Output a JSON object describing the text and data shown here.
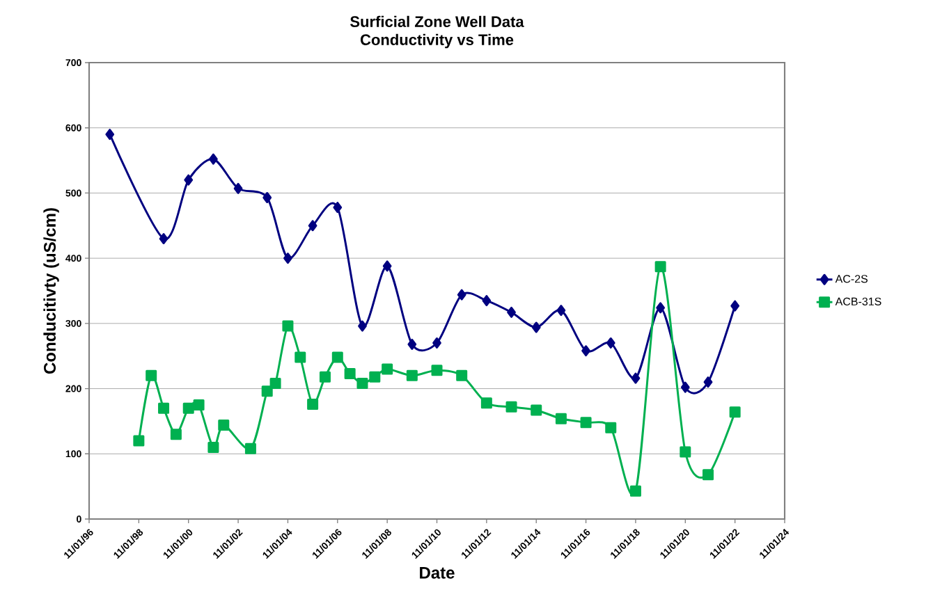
{
  "chart_data": {
    "type": "line",
    "title": "Surficial Zone Well Data",
    "subtitle": "Conductivity vs Time",
    "xlabel": "Date",
    "ylabel": "Conducitivty (uS/cm)",
    "xlim": [
      "1996-11-01",
      "2024-11-01"
    ],
    "xticks": [
      {
        "value": "1996-11-01",
        "label": "11/01/96"
      },
      {
        "value": "1998-11-01",
        "label": "11/01/98"
      },
      {
        "value": "2000-11-01",
        "label": "11/01/00"
      },
      {
        "value": "2002-11-01",
        "label": "11/01/02"
      },
      {
        "value": "2004-11-01",
        "label": "11/01/04"
      },
      {
        "value": "2006-11-01",
        "label": "11/01/06"
      },
      {
        "value": "2008-11-01",
        "label": "11/01/08"
      },
      {
        "value": "2010-11-01",
        "label": "11/01/10"
      },
      {
        "value": "2012-11-01",
        "label": "11/01/12"
      },
      {
        "value": "2014-11-01",
        "label": "11/01/14"
      },
      {
        "value": "2016-11-01",
        "label": "11/01/16"
      },
      {
        "value": "2018-11-01",
        "label": "11/01/18"
      },
      {
        "value": "2020-11-01",
        "label": "11/01/20"
      },
      {
        "value": "2022-11-01",
        "label": "11/01/22"
      },
      {
        "value": "2024-11-01",
        "label": "11/01/24"
      }
    ],
    "ylim": [
      0,
      700
    ],
    "yticks": [
      0,
      100,
      200,
      300,
      400,
      500,
      600,
      700
    ],
    "grid": "y",
    "legend": "right",
    "line_style": "solid",
    "series": [
      {
        "name": "AC-2S",
        "color": "#000080",
        "marker": "diamond",
        "x": [
          "1997-09",
          "1999-11",
          "2000-11",
          "2001-11",
          "2002-11",
          "2004-01",
          "2004-11",
          "2005-11",
          "2006-11",
          "2007-11",
          "2008-11",
          "2009-11",
          "2010-11",
          "2011-11",
          "2012-11",
          "2013-11",
          "2014-11",
          "2015-11",
          "2016-11",
          "2017-11",
          "2018-11",
          "2019-11",
          "2020-11",
          "2021-10",
          "2022-11"
        ],
        "values": [
          590,
          430,
          520,
          552,
          507,
          493,
          400,
          450,
          478,
          296,
          388,
          268,
          270,
          344,
          335,
          317,
          294,
          320,
          258,
          270,
          216,
          324,
          202,
          210,
          327
        ]
      },
      {
        "name": "ACB-31S",
        "color": "#00b050",
        "marker": "square",
        "x": [
          "1998-11",
          "1999-05",
          "1999-11",
          "2000-05",
          "2000-11",
          "2001-04",
          "2001-11",
          "2002-04",
          "2003-05",
          "2004-01",
          "2004-05",
          "2004-11",
          "2005-05",
          "2005-11",
          "2006-05",
          "2006-11",
          "2007-05",
          "2007-11",
          "2008-05",
          "2008-11",
          "2009-11",
          "2010-11",
          "2011-11",
          "2012-11",
          "2013-11",
          "2014-11",
          "2015-11",
          "2016-11",
          "2017-11",
          "2018-11",
          "2019-11",
          "2020-11",
          "2021-10",
          "2022-11"
        ],
        "values": [
          120,
          220,
          170,
          130,
          170,
          175,
          110,
          144,
          108,
          196,
          208,
          296,
          248,
          176,
          218,
          248,
          223,
          208,
          218,
          230,
          220,
          228,
          220,
          178,
          172,
          167,
          154,
          148,
          140,
          43,
          387,
          103,
          68,
          164
        ]
      }
    ]
  }
}
